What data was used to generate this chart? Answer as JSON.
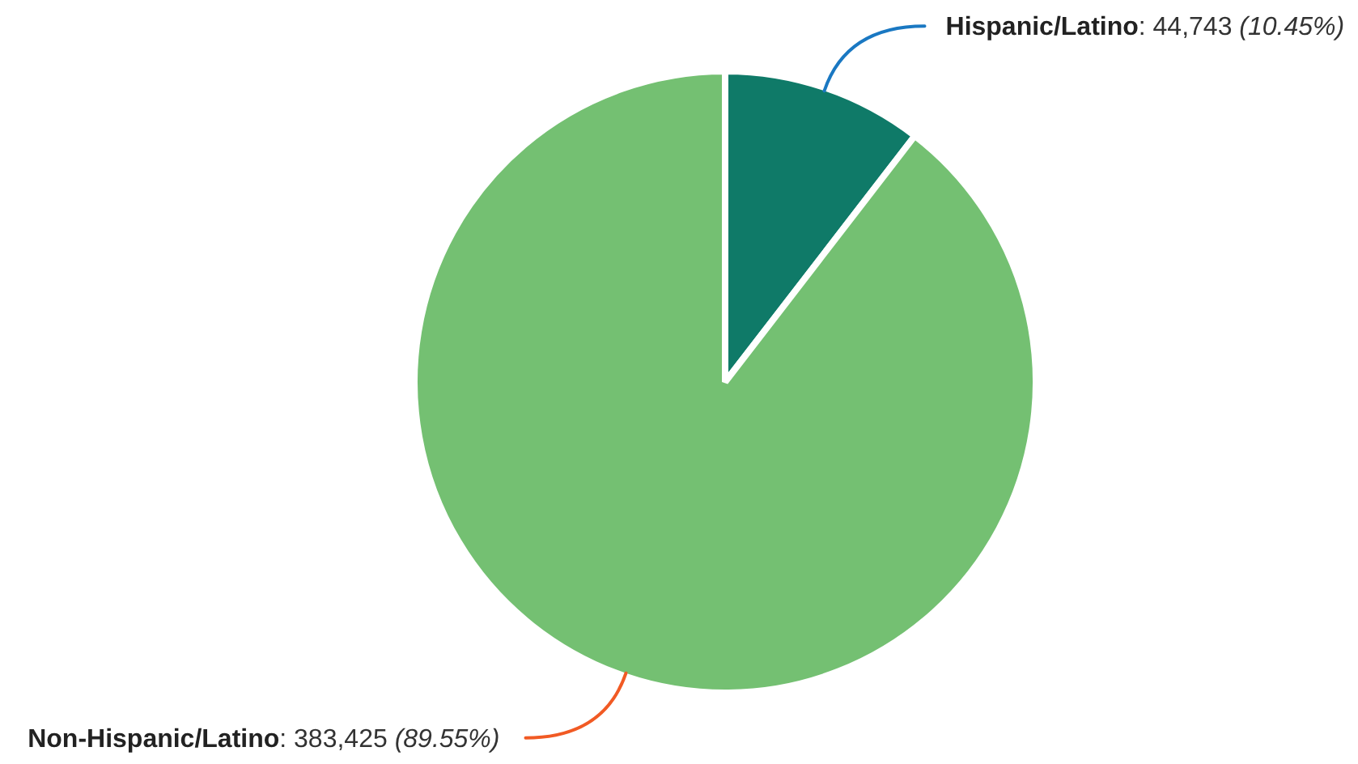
{
  "chart_data": {
    "type": "pie",
    "categories": [
      "Hispanic/Latino",
      "Non-Hispanic/Latino"
    ],
    "values": [
      44743,
      383425
    ],
    "colors": [
      "#0f7a68",
      "#74c072"
    ],
    "value_labels": [
      ": 44,743 (10.45%)",
      ": 383,425 (89.55%)"
    ]
  }
}
